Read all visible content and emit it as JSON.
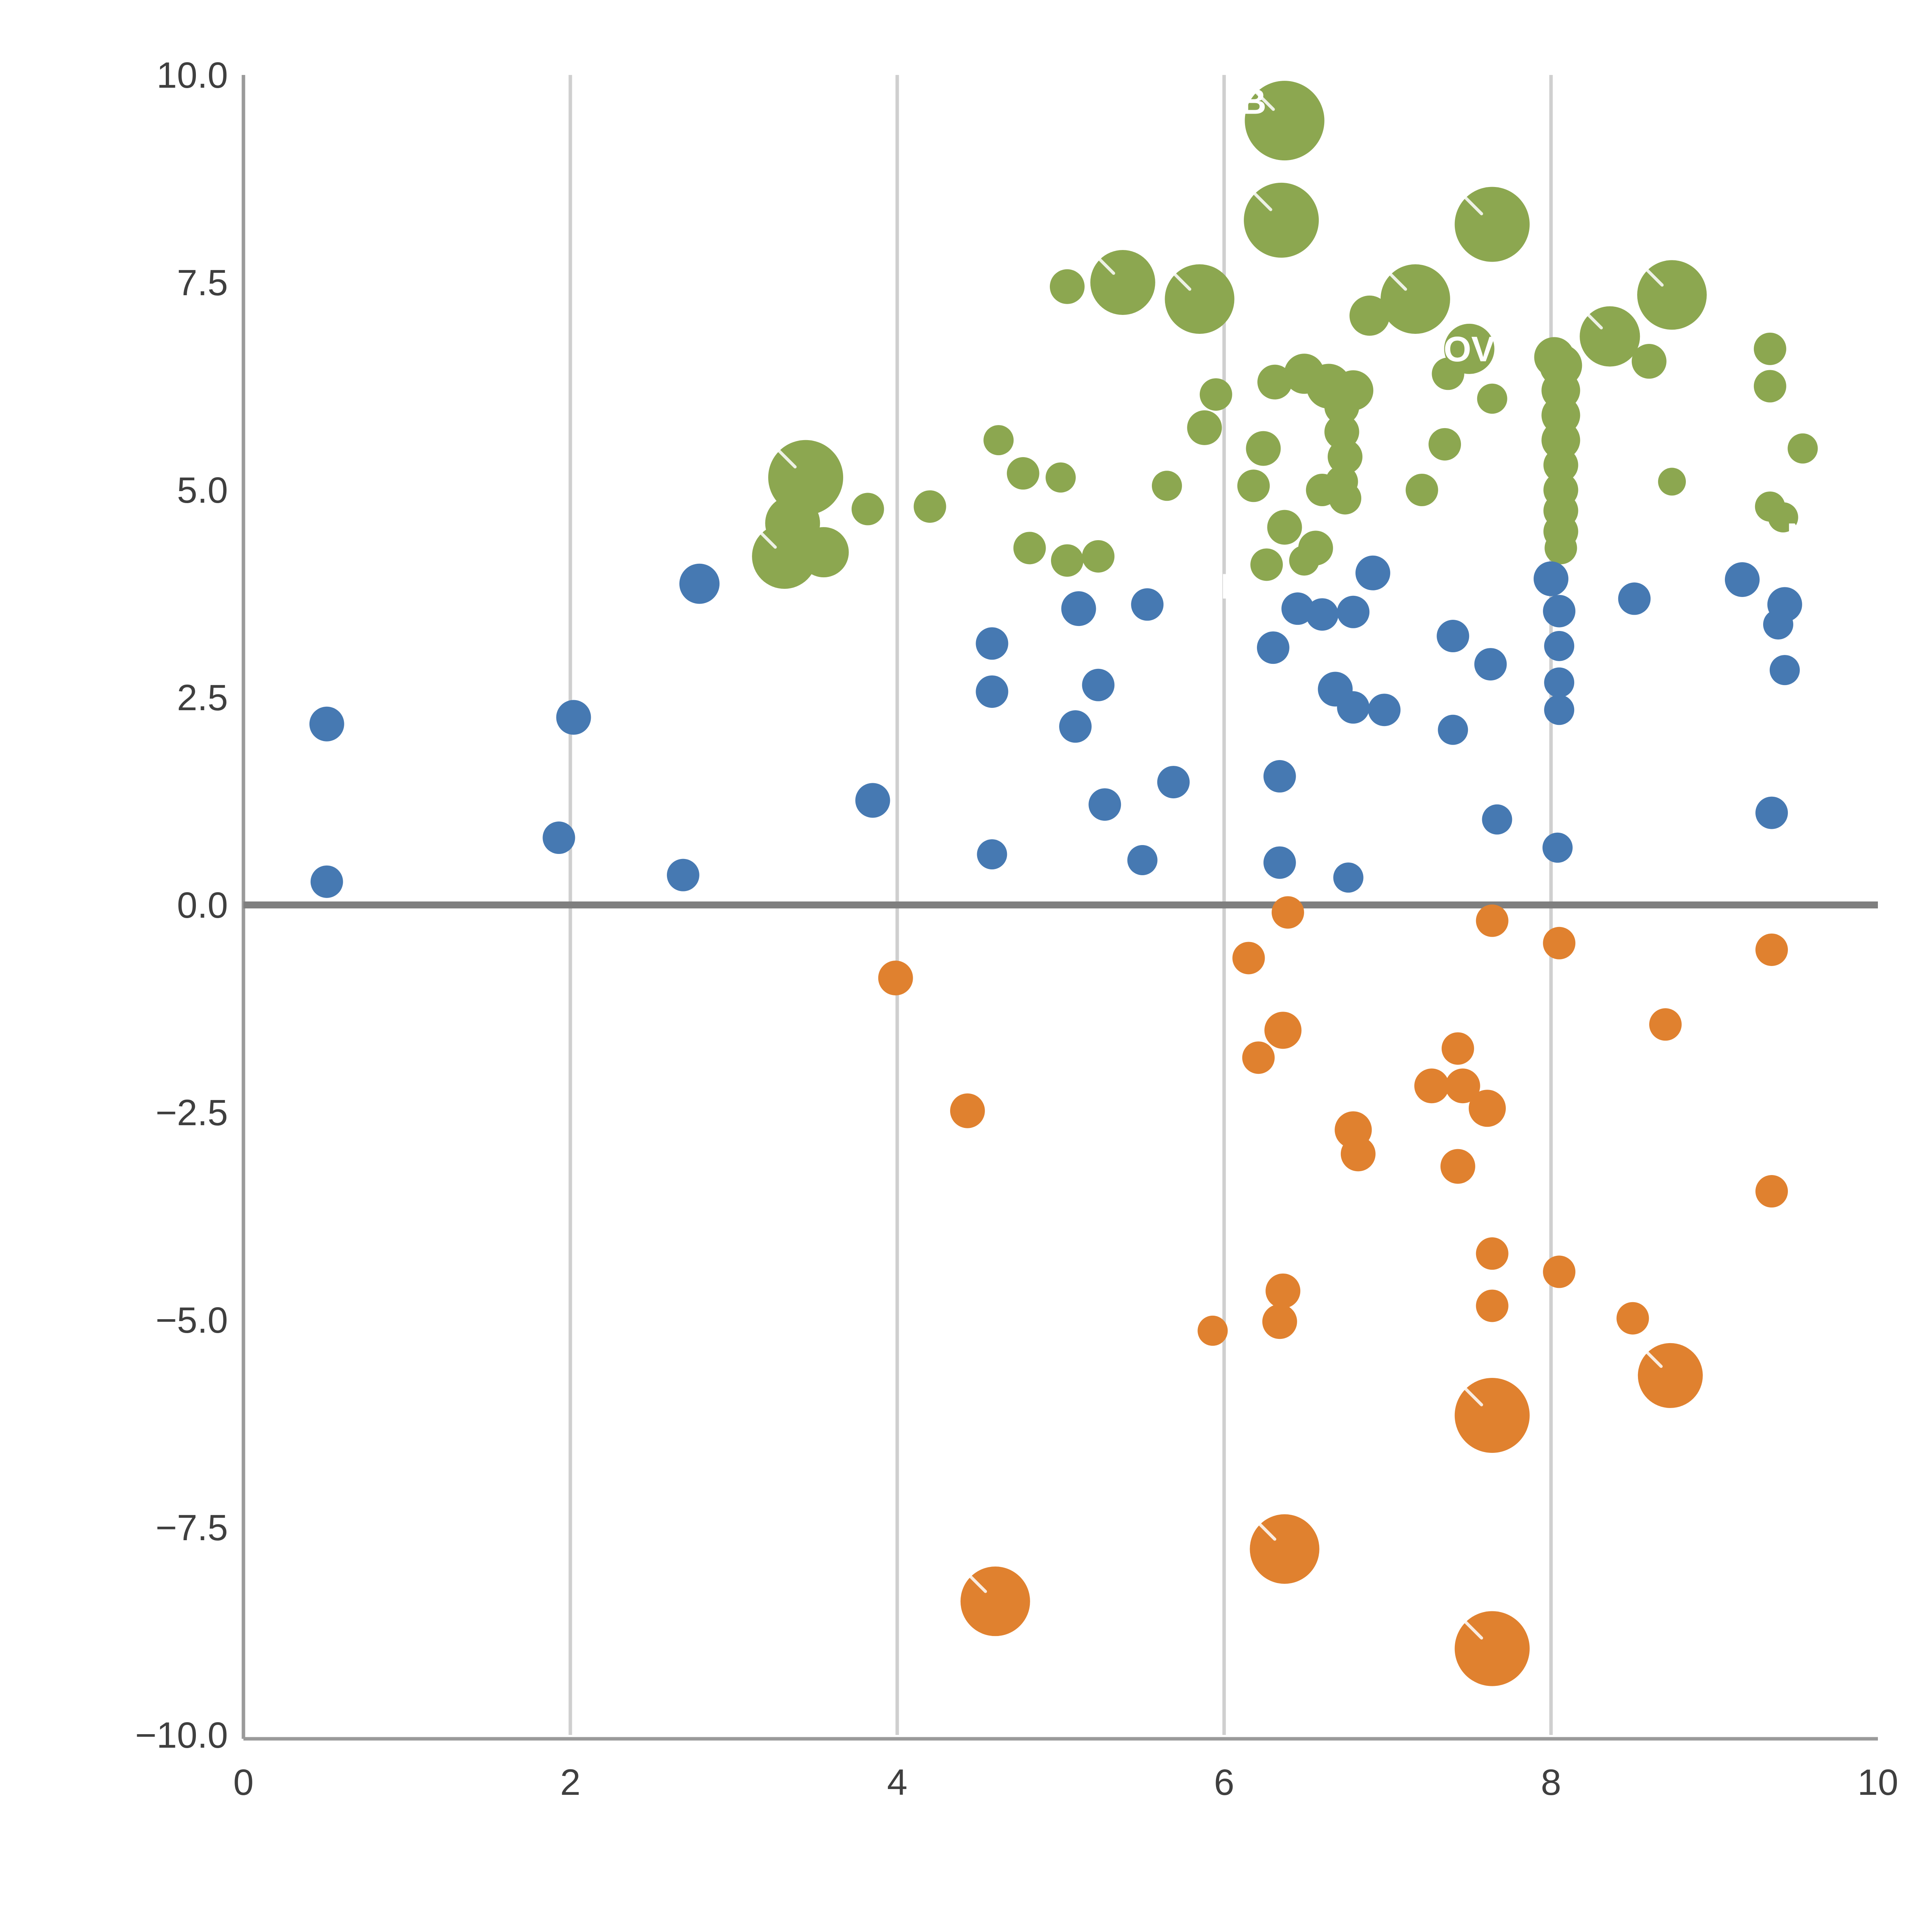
{
  "chart_data": {
    "type": "scatter",
    "title": "",
    "xlabel": "",
    "ylabel": "",
    "xlim": [
      0,
      10
    ],
    "ylim": [
      -10,
      10
    ],
    "x_ticks": {
      "values": [
        0,
        2,
        4,
        6,
        8,
        10
      ],
      "labels": [
        "0",
        "2",
        "4",
        "6",
        "8",
        "10"
      ]
    },
    "y_ticks": {
      "values": [
        10,
        7.5,
        5,
        2.5,
        0,
        -2.5,
        -5,
        -7.5,
        -10
      ],
      "labels": [
        "10.0",
        "7.5",
        "5.0",
        "2.5",
        "0.0",
        "−2.5",
        "−5.0",
        "−7.5",
        "−10.0"
      ]
    },
    "grid": {
      "vertical_at": [
        2,
        4,
        6,
        8
      ],
      "horizontal": false
    },
    "zero_line_y": 0,
    "legend": "none",
    "colors": {
      "green": "#8CA750",
      "blue": "#4679B2",
      "orange": "#E0812F",
      "grid": "#cfcfcf",
      "axis": "#9a9a9a",
      "zero_line": "#7f7f7f",
      "tick_text": "#3f3f3f",
      "annotation_text": "#ffffff"
    },
    "series": [
      {
        "name": "green",
        "color": "#8CA750",
        "points": [
          [
            6.37,
            9.45,
            103
          ],
          [
            6.35,
            8.25,
            97
          ],
          [
            7.64,
            8.2,
            97
          ],
          [
            5.38,
            7.5,
            84
          ],
          [
            5.04,
            7.45,
            45
          ],
          [
            5.85,
            7.3,
            90
          ],
          [
            7.17,
            7.3,
            90
          ],
          [
            8.74,
            7.35,
            90
          ],
          [
            6.89,
            7.1,
            52
          ],
          [
            8.36,
            6.85,
            78
          ],
          [
            8.6,
            6.55,
            45
          ],
          [
            9.34,
            6.7,
            42
          ],
          [
            9.34,
            6.25,
            42
          ],
          [
            8.02,
            6.6,
            52
          ],
          [
            7.5,
            6.7,
            65
          ],
          [
            6.49,
            6.4,
            52
          ],
          [
            6.64,
            6.25,
            58
          ],
          [
            6.79,
            6.2,
            52
          ],
          [
            7.37,
            6.4,
            42
          ],
          [
            6.31,
            6.3,
            45
          ],
          [
            5.95,
            6.15,
            42
          ],
          [
            7.64,
            6.1,
            39
          ],
          [
            8.06,
            6.5,
            55
          ],
          [
            8.06,
            6.2,
            50
          ],
          [
            8.06,
            5.9,
            50
          ],
          [
            8.06,
            5.6,
            50
          ],
          [
            8.06,
            5.3,
            45
          ],
          [
            8.06,
            5.0,
            45
          ],
          [
            8.06,
            4.75,
            45
          ],
          [
            8.06,
            4.5,
            45
          ],
          [
            8.06,
            4.3,
            42
          ],
          [
            6.72,
            6.0,
            45
          ],
          [
            6.72,
            5.7,
            45
          ],
          [
            6.74,
            5.4,
            45
          ],
          [
            6.72,
            5.1,
            42
          ],
          [
            6.74,
            4.9,
            42
          ],
          [
            5.88,
            5.75,
            45
          ],
          [
            4.62,
            5.6,
            39
          ],
          [
            6.24,
            5.5,
            45
          ],
          [
            7.35,
            5.55,
            42
          ],
          [
            9.54,
            5.5,
            39
          ],
          [
            4.77,
            5.2,
            42
          ],
          [
            5.0,
            5.15,
            39
          ],
          [
            5.65,
            5.05,
            39
          ],
          [
            3.44,
            5.15,
            97
          ],
          [
            6.18,
            5.05,
            42
          ],
          [
            6.6,
            5.0,
            42
          ],
          [
            7.21,
            5.0,
            42
          ],
          [
            8.74,
            5.1,
            36
          ],
          [
            3.36,
            4.6,
            71
          ],
          [
            3.31,
            4.2,
            84
          ],
          [
            3.55,
            4.25,
            65
          ],
          [
            3.82,
            4.77,
            42
          ],
          [
            4.2,
            4.8,
            42
          ],
          [
            9.34,
            4.8,
            39
          ],
          [
            9.42,
            4.67,
            39
          ],
          [
            6.37,
            4.55,
            45
          ],
          [
            6.56,
            4.3,
            45
          ],
          [
            4.81,
            4.3,
            42
          ],
          [
            5.04,
            4.15,
            42
          ],
          [
            5.23,
            4.2,
            42
          ],
          [
            6.26,
            4.1,
            42
          ],
          [
            6.49,
            4.15,
            39
          ]
        ]
      },
      {
        "name": "blue",
        "color": "#4679B2",
        "points": [
          [
            2.79,
            3.87,
            52
          ],
          [
            6.91,
            4.0,
            45
          ],
          [
            8.0,
            3.93,
            45
          ],
          [
            9.17,
            3.92,
            45
          ],
          [
            5.11,
            3.57,
            45
          ],
          [
            5.53,
            3.62,
            42
          ],
          [
            6.45,
            3.57,
            42
          ],
          [
            6.6,
            3.5,
            42
          ],
          [
            6.79,
            3.53,
            42
          ],
          [
            8.05,
            3.54,
            42
          ],
          [
            8.51,
            3.69,
            42
          ],
          [
            9.43,
            3.62,
            45
          ],
          [
            9.39,
            3.38,
            39
          ],
          [
            4.58,
            3.15,
            42
          ],
          [
            6.3,
            3.1,
            42
          ],
          [
            7.4,
            3.24,
            42
          ],
          [
            8.05,
            3.12,
            39
          ],
          [
            7.63,
            2.9,
            42
          ],
          [
            9.43,
            2.83,
            39
          ],
          [
            4.58,
            2.57,
            42
          ],
          [
            5.23,
            2.65,
            42
          ],
          [
            6.68,
            2.6,
            45
          ],
          [
            8.05,
            2.68,
            39
          ],
          [
            6.79,
            2.38,
            42
          ],
          [
            6.98,
            2.35,
            42
          ],
          [
            8.05,
            2.35,
            39
          ],
          [
            5.09,
            2.15,
            42
          ],
          [
            2.02,
            2.26,
            45
          ],
          [
            0.51,
            2.18,
            45
          ],
          [
            7.4,
            2.11,
            39
          ],
          [
            5.69,
            1.48,
            42
          ],
          [
            6.34,
            1.55,
            42
          ],
          [
            3.85,
            1.26,
            45
          ],
          [
            5.27,
            1.21,
            42
          ],
          [
            1.93,
            0.81,
            42
          ],
          [
            7.67,
            1.03,
            39
          ],
          [
            9.35,
            1.11,
            42
          ],
          [
            4.58,
            0.61,
            39
          ],
          [
            5.5,
            0.54,
            39
          ],
          [
            6.34,
            0.51,
            42
          ],
          [
            8.04,
            0.69,
            39
          ],
          [
            6.76,
            0.33,
            39
          ],
          [
            2.69,
            0.36,
            42
          ],
          [
            0.51,
            0.28,
            42
          ]
        ]
      },
      {
        "name": "orange",
        "color": "#E0812F",
        "points": [
          [
            6.39,
            -0.09,
            42
          ],
          [
            7.64,
            -0.19,
            42
          ],
          [
            8.05,
            -0.46,
            42
          ],
          [
            9.35,
            -0.54,
            42
          ],
          [
            6.15,
            -0.64,
            42
          ],
          [
            3.99,
            -0.88,
            45
          ],
          [
            6.36,
            -1.51,
            48
          ],
          [
            8.7,
            -1.44,
            42
          ],
          [
            6.21,
            -1.84,
            42
          ],
          [
            7.43,
            -1.73,
            42
          ],
          [
            7.27,
            -2.18,
            45
          ],
          [
            7.46,
            -2.18,
            45
          ],
          [
            4.43,
            -2.48,
            45
          ],
          [
            7.61,
            -2.45,
            48
          ],
          [
            6.79,
            -2.71,
            48
          ],
          [
            6.82,
            -3.0,
            45
          ],
          [
            7.43,
            -3.15,
            45
          ],
          [
            9.35,
            -3.45,
            42
          ],
          [
            7.64,
            -4.2,
            42
          ],
          [
            8.05,
            -4.42,
            42
          ],
          [
            6.36,
            -4.65,
            45
          ],
          [
            7.64,
            -4.83,
            42
          ],
          [
            8.5,
            -4.98,
            42
          ],
          [
            5.93,
            -5.13,
            39
          ],
          [
            6.34,
            -5.02,
            45
          ],
          [
            8.73,
            -5.67,
            84
          ],
          [
            7.64,
            -6.15,
            97
          ],
          [
            6.37,
            -7.76,
            90
          ],
          [
            4.6,
            -8.39,
            90
          ],
          [
            7.64,
            -8.96,
            97
          ]
        ]
      }
    ],
    "annotations": [
      {
        "text": "B",
        "x": 6.18,
        "y": 9.68
      },
      {
        "text": "OV",
        "x": 7.5,
        "y": 6.7
      },
      {
        "text": "DAB",
        "x": 5.9,
        "y": 3.84
      },
      {
        "text": "N",
        "x": 9.52,
        "y": 4.45
      }
    ]
  }
}
